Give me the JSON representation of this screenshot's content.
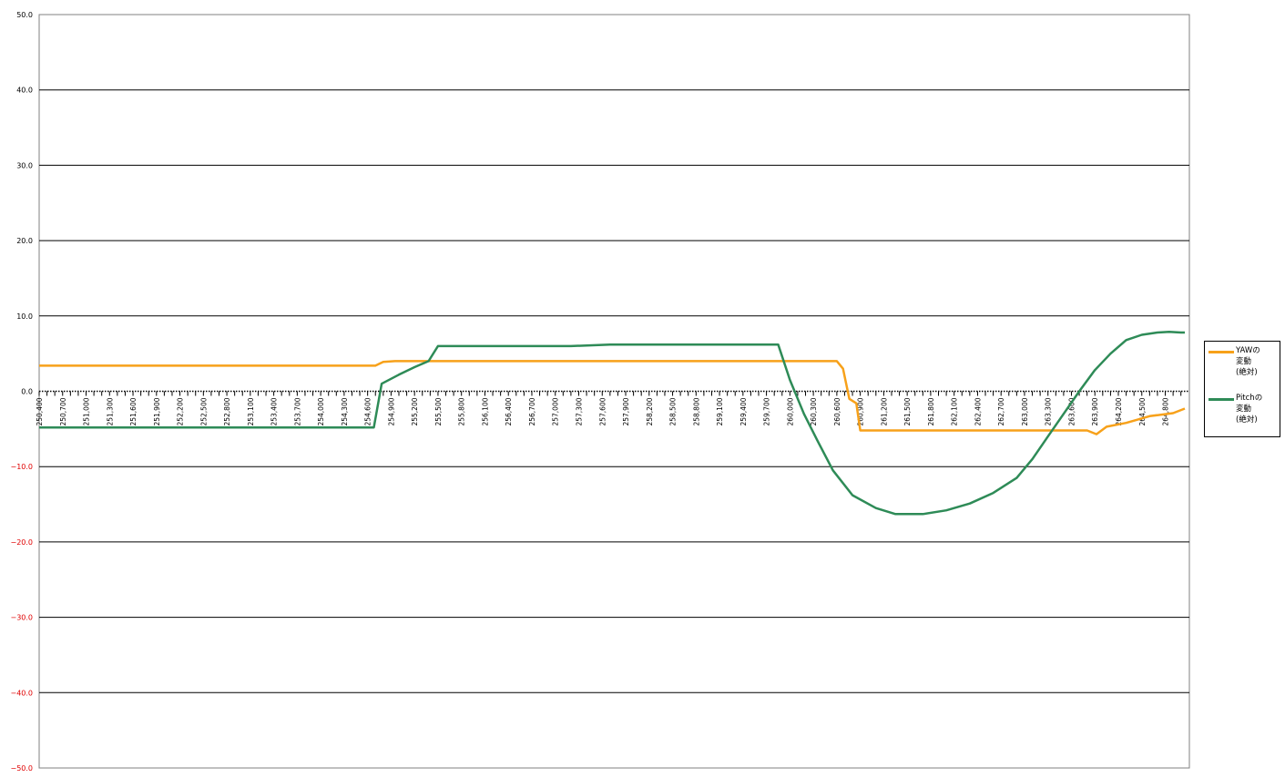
{
  "chart_data": {
    "type": "line",
    "title": "",
    "xlabel": "",
    "ylabel": "",
    "ylim": [
      -50,
      50
    ],
    "yticks": [
      "50.0",
      "40.0",
      "30.0",
      "20.0",
      "10.0",
      "0.0",
      "−10.0",
      "−20.0",
      "−30.0",
      "−40.0",
      "−50.0"
    ],
    "x_tick_labels": [
      "250,400",
      "250,700",
      "251,000",
      "251,300",
      "251,600",
      "251,900",
      "252,200",
      "252,500",
      "252,800",
      "253,100",
      "253,400",
      "253,700",
      "254,000",
      "254,300",
      "254,600",
      "254,900",
      "255,200",
      "255,500",
      "255,800",
      "256,100",
      "256,400",
      "256,700",
      "257,000",
      "257,300",
      "257,600",
      "257,900",
      "258,200",
      "258,500",
      "258,800",
      "259,100",
      "259,400",
      "259,700",
      "260,000",
      "260,300",
      "260,600",
      "260,900",
      "261,200",
      "261,500",
      "261,800",
      "262,100",
      "262,400",
      "262,700",
      "263,000",
      "263,300",
      "263,600",
      "263,900",
      "264,200",
      "264,500",
      "264,800"
    ],
    "x_range": [
      250400,
      265050
    ],
    "grid": true,
    "legend_position": "right",
    "negative_tick_color": "#e00000",
    "series": [
      {
        "name": "YAWの\n変動\n(絶対)",
        "color": "#f7a11a",
        "points": [
          [
            250400,
            3.4
          ],
          [
            254700,
            3.4
          ],
          [
            254800,
            3.9
          ],
          [
            254950,
            4.0
          ],
          [
            255600,
            4.0
          ],
          [
            260350,
            4.0
          ],
          [
            260600,
            4.0
          ],
          [
            260680,
            3.0
          ],
          [
            260760,
            -1.0
          ],
          [
            260850,
            -1.6
          ],
          [
            260900,
            -5.2
          ],
          [
            263800,
            -5.2
          ],
          [
            263920,
            -5.7
          ],
          [
            264050,
            -4.7
          ],
          [
            264300,
            -4.2
          ],
          [
            264600,
            -3.3
          ],
          [
            264900,
            -2.9
          ],
          [
            265050,
            -2.3
          ]
        ]
      },
      {
        "name": "Pitchの\n変動\n(絶対)",
        "color": "#2e8b57",
        "points": [
          [
            250400,
            -4.8
          ],
          [
            254620,
            -4.8
          ],
          [
            254680,
            -4.8
          ],
          [
            254780,
            1.0
          ],
          [
            255000,
            2.2
          ],
          [
            255200,
            3.2
          ],
          [
            255380,
            4.0
          ],
          [
            255500,
            6.0
          ],
          [
            257200,
            6.0
          ],
          [
            257700,
            6.2
          ],
          [
            259850,
            6.2
          ],
          [
            260000,
            1.5
          ],
          [
            260180,
            -3.0
          ],
          [
            260350,
            -6.5
          ],
          [
            260550,
            -10.5
          ],
          [
            260800,
            -13.8
          ],
          [
            261100,
            -15.5
          ],
          [
            261350,
            -16.3
          ],
          [
            261700,
            -16.3
          ],
          [
            262000,
            -15.8
          ],
          [
            262300,
            -14.9
          ],
          [
            262600,
            -13.5
          ],
          [
            262900,
            -11.5
          ],
          [
            263100,
            -9.0
          ],
          [
            263300,
            -6.0
          ],
          [
            263500,
            -3.0
          ],
          [
            263700,
            0.0
          ],
          [
            263900,
            2.8
          ],
          [
            264100,
            5.0
          ],
          [
            264300,
            6.8
          ],
          [
            264500,
            7.5
          ],
          [
            264700,
            7.8
          ],
          [
            264850,
            7.9
          ],
          [
            265000,
            7.8
          ],
          [
            265050,
            7.8
          ]
        ]
      }
    ]
  }
}
